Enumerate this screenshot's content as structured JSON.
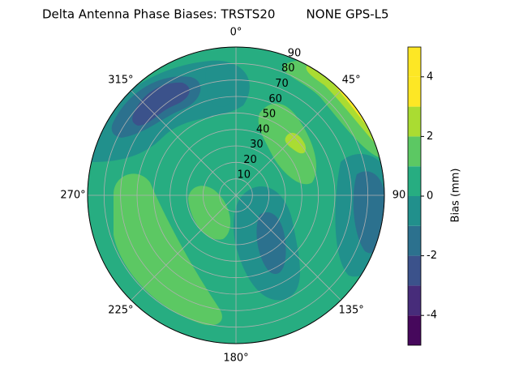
{
  "chart_data": {
    "type": "polar_contour",
    "title": "Delta Antenna Phase Biases: TRSTS20        NONE GPS-L5",
    "colorbar_label": "Bias (mm)",
    "rlim": [
      0,
      90
    ],
    "rticks": [
      10,
      20,
      30,
      40,
      50,
      60,
      70,
      80,
      90
    ],
    "thetaticks": [
      {
        "value": 0,
        "label": "0°"
      },
      {
        "value": 45,
        "label": "45°"
      },
      {
        "value": 90,
        "label": "90"
      },
      {
        "value": 135,
        "label": "135°"
      },
      {
        "value": 180,
        "label": "180°"
      },
      {
        "value": 225,
        "label": "225°"
      },
      {
        "value": 270,
        "label": "270°"
      },
      {
        "value": 315,
        "label": "315°"
      }
    ],
    "levels": [
      -5,
      -4,
      -3,
      -2,
      -1,
      0,
      1,
      2,
      3,
      4,
      5
    ],
    "level_colors": [
      "#46085c",
      "#472c7a",
      "#3b528b",
      "#2c718e",
      "#21908c",
      "#27ad81",
      "#5cc863",
      "#aadc32",
      "#fde725",
      "#fde725"
    ],
    "clim": [
      -5,
      5
    ],
    "cticks": [
      -4,
      -2,
      0,
      2,
      4
    ],
    "grid": true
  }
}
